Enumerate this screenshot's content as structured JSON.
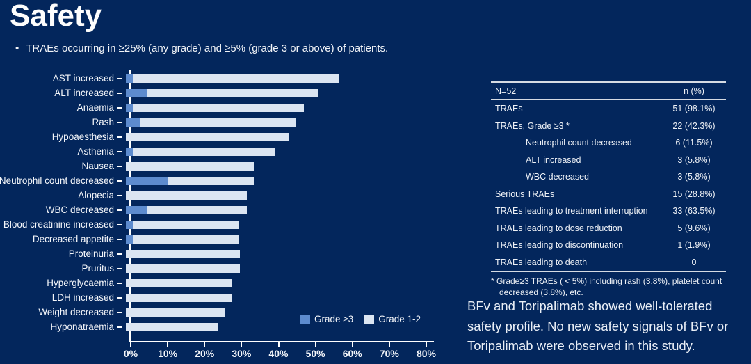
{
  "slide": {
    "title": "Safety",
    "bullet_marker": "•",
    "bullet": "TRAEs occurring in ≥25% (any grade) and ≥5% (grade 3 or above) of patients."
  },
  "colors": {
    "background": "#03265c",
    "grade3": "#5d8bce",
    "grade12": "#dbe5f2",
    "text": "#ffffff"
  },
  "chart_data": {
    "type": "bar",
    "orientation": "horizontal",
    "stacked": true,
    "categories": [
      "AST increased",
      "ALT increased",
      "Anaemia",
      "Rash",
      "Hypoaesthesia",
      "Asthenia",
      "Nausea",
      "Neutrophil count decreased",
      "Alopecia",
      "WBC decreased",
      "Blood creatinine increased",
      "Decreased appetite",
      "Proteinuria",
      "Pruritus",
      "Hyperglycaemia",
      "LDH increased",
      "Weight decreased",
      "Hyponatraemia"
    ],
    "series": [
      {
        "name": "Grade ≥3",
        "values": [
          1.9,
          5.8,
          1.9,
          3.8,
          0,
          1.9,
          0,
          11.5,
          0,
          5.8,
          1.9,
          1.9,
          0,
          0,
          0,
          0,
          0,
          0
        ]
      },
      {
        "name": "Grade 1-2",
        "values": [
          55.8,
          46.2,
          46.2,
          42.3,
          44.2,
          38.5,
          34.6,
          23.1,
          32.7,
          26.9,
          28.8,
          28.8,
          30.8,
          30.8,
          28.8,
          28.8,
          26.9,
          25.0
        ]
      }
    ],
    "totals_pct": [
      57.7,
      51.9,
      48.1,
      46.2,
      44.2,
      40.4,
      34.6,
      34.6,
      32.7,
      32.7,
      30.8,
      30.8,
      30.8,
      30.8,
      28.8,
      28.8,
      26.9,
      25.0
    ],
    "xlim": [
      0,
      80
    ],
    "xticks": [
      "0%",
      "10%",
      "20%",
      "30%",
      "40%",
      "50%",
      "60%",
      "70%",
      "80%"
    ],
    "legend": [
      "Grade ≥3",
      "Grade 1-2"
    ],
    "legend_position": "bottom-right",
    "grid": false
  },
  "table": {
    "header": {
      "col1": "N=52",
      "col2": "n (%)"
    },
    "rows": [
      {
        "label": "TRAEs",
        "value": "51 (98.1%)",
        "indent": false
      },
      {
        "label": "TRAEs, Grade ≥3 *",
        "value": "22 (42.3%)",
        "indent": false
      },
      {
        "label": "Neutrophil count decreased",
        "value": "6 (11.5%)",
        "indent": true
      },
      {
        "label": "ALT increased",
        "value": "3 (5.8%)",
        "indent": true
      },
      {
        "label": "WBC decreased",
        "value": "3 (5.8%)",
        "indent": true
      },
      {
        "label": "Serious TRAEs",
        "value": "15 (28.8%)",
        "indent": false
      },
      {
        "label": "TRAEs leading to treatment interruption",
        "value": "33 (63.5%)",
        "indent": false
      },
      {
        "label": "TRAEs leading to dose reduction",
        "value": "5 (9.6%)",
        "indent": false
      },
      {
        "label": "TRAEs leading to discontinuation",
        "value": "1 (1.9%)",
        "indent": false
      },
      {
        "label": "TRAEs leading to death",
        "value": "0",
        "indent": false
      }
    ],
    "footnote": "* Grade≥3 TRAEs ( < 5%) including rash (3.8%), platelet count decreased (3.8%), etc."
  },
  "summary": "BFv and Toripalimab showed well-tolerated safety profile. No new safety signals of BFv or Toripalimab were observed in this study."
}
